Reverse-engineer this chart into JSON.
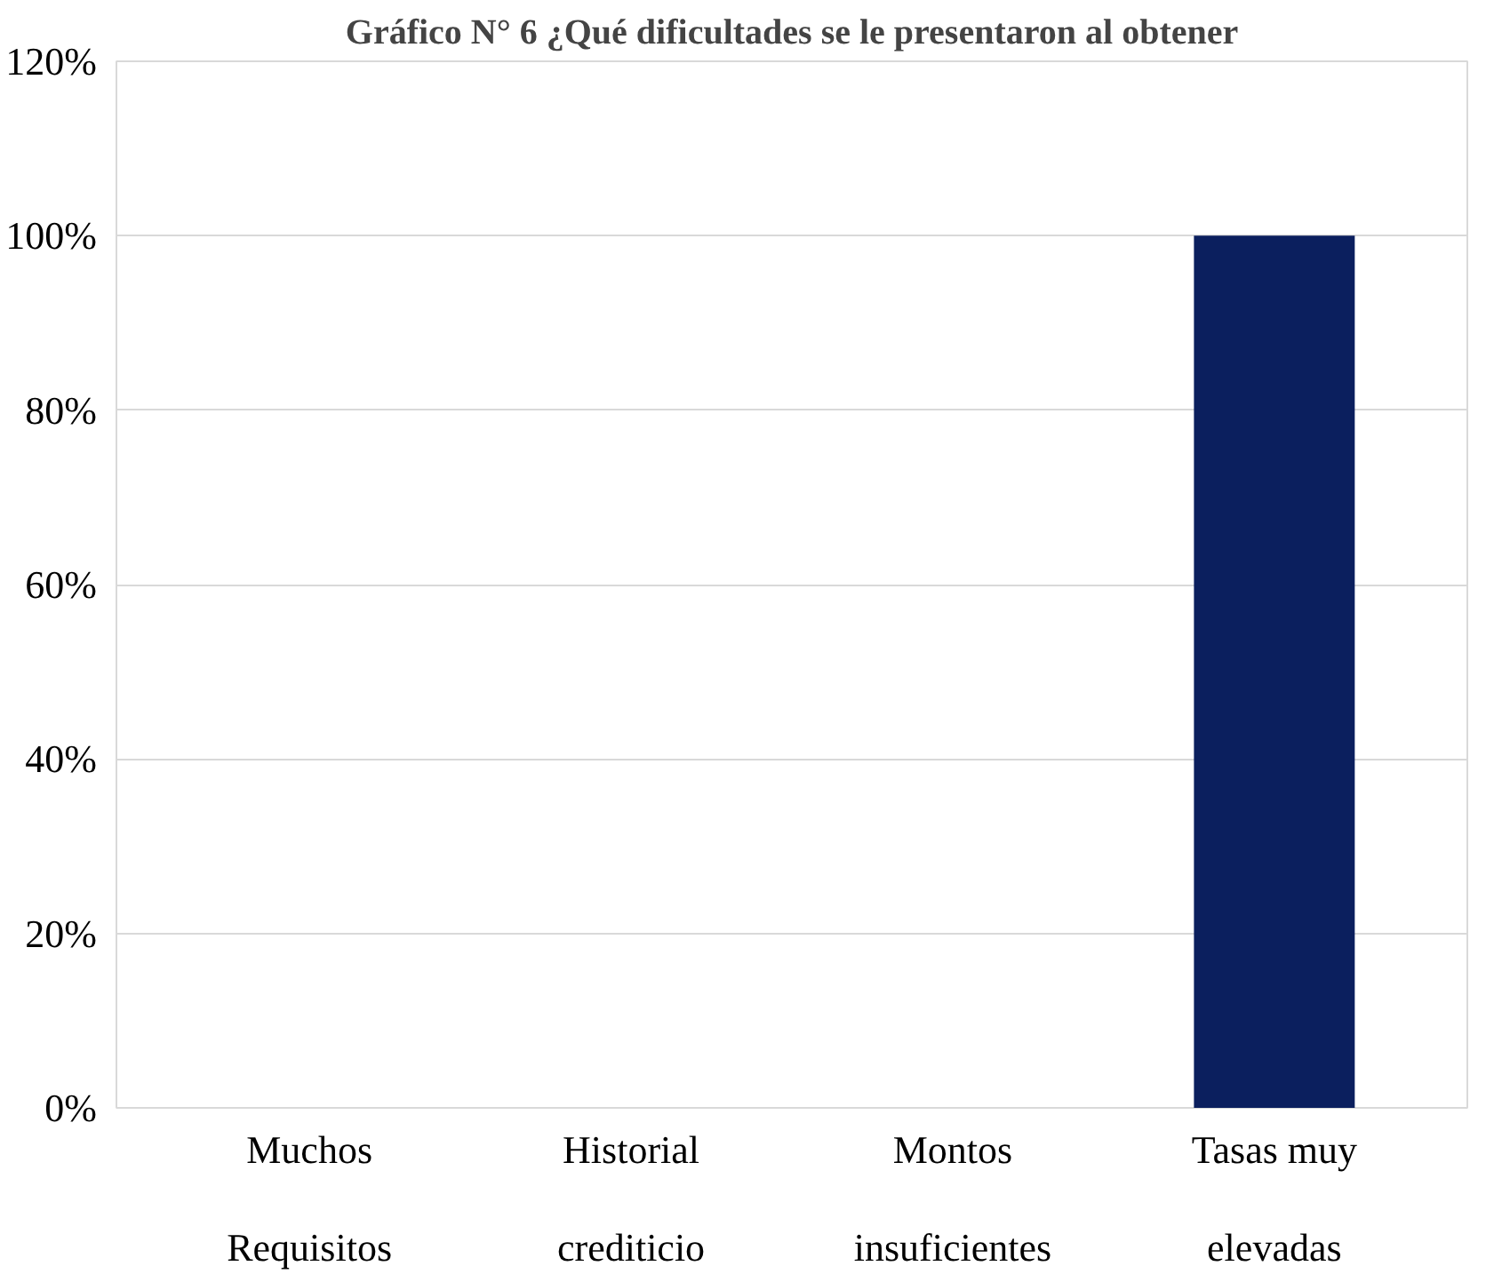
{
  "chart_data": {
    "type": "bar",
    "title": "Gráfico N° 6 ¿Qué dificultades se le presentaron al obtener",
    "categories": [
      "Muchos Requisitos",
      "Historial crediticio",
      "Montos insuficientes",
      "Tasas muy elevadas"
    ],
    "values": [
      0,
      0,
      0,
      100
    ],
    "color": "#0b1f5e",
    "ylim": [
      0,
      120
    ],
    "yticks": [
      {
        "value": 0,
        "label": "0%"
      },
      {
        "value": 20,
        "label": "20%"
      },
      {
        "value": 40,
        "label": "40%"
      },
      {
        "value": 60,
        "label": "60%"
      },
      {
        "value": 80,
        "label": "80%"
      },
      {
        "value": 100,
        "label": "100%"
      },
      {
        "value": 120,
        "label": "120%"
      }
    ],
    "grid": "y"
  }
}
